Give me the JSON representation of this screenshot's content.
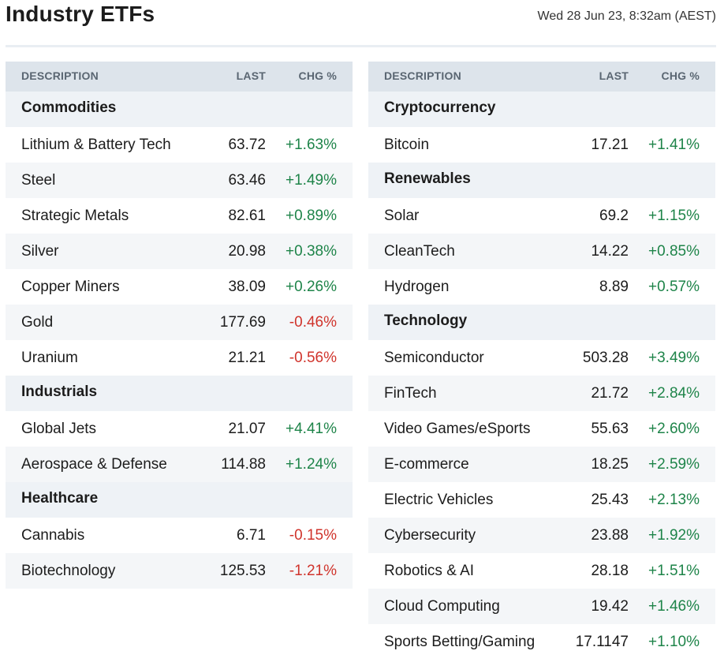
{
  "page": {
    "title": "Industry ETFs",
    "timestamp": "Wed 28 Jun 23, 8:32am (AEST)"
  },
  "columns": {
    "description": "DESCRIPTION",
    "last": "LAST",
    "chg": "CHG %"
  },
  "colors": {
    "positive": "#1e8449",
    "negative": "#d0342c",
    "header_bg": "#dde4eb",
    "group_bg": "#eef2f6"
  },
  "left_table": [
    {
      "group": "Commodities",
      "rows": [
        {
          "name": "Lithium & Battery Tech",
          "last": "63.72",
          "chg": "+1.63%"
        },
        {
          "name": "Steel",
          "last": "63.46",
          "chg": "+1.49%"
        },
        {
          "name": "Strategic Metals",
          "last": "82.61",
          "chg": "+0.89%"
        },
        {
          "name": "Silver",
          "last": "20.98",
          "chg": "+0.38%"
        },
        {
          "name": "Copper Miners",
          "last": "38.09",
          "chg": "+0.26%"
        },
        {
          "name": "Gold",
          "last": "177.69",
          "chg": "-0.46%"
        },
        {
          "name": "Uranium",
          "last": "21.21",
          "chg": "-0.56%"
        }
      ]
    },
    {
      "group": "Industrials",
      "rows": [
        {
          "name": "Global Jets",
          "last": "21.07",
          "chg": "+4.41%"
        },
        {
          "name": "Aerospace & Defense",
          "last": "114.88",
          "chg": "+1.24%"
        }
      ]
    },
    {
      "group": "Healthcare",
      "rows": [
        {
          "name": "Cannabis",
          "last": "6.71",
          "chg": "-0.15%"
        },
        {
          "name": "Biotechnology",
          "last": "125.53",
          "chg": "-1.21%"
        }
      ]
    }
  ],
  "right_table": [
    {
      "group": "Cryptocurrency",
      "rows": [
        {
          "name": "Bitcoin",
          "last": "17.21",
          "chg": "+1.41%"
        }
      ]
    },
    {
      "group": "Renewables",
      "rows": [
        {
          "name": "Solar",
          "last": "69.2",
          "chg": "+1.15%"
        },
        {
          "name": "CleanTech",
          "last": "14.22",
          "chg": "+0.85%"
        },
        {
          "name": "Hydrogen",
          "last": "8.89",
          "chg": "+0.57%"
        }
      ]
    },
    {
      "group": "Technology",
      "rows": [
        {
          "name": "Semiconductor",
          "last": "503.28",
          "chg": "+3.49%"
        },
        {
          "name": "FinTech",
          "last": "21.72",
          "chg": "+2.84%"
        },
        {
          "name": "Video Games/eSports",
          "last": "55.63",
          "chg": "+2.60%"
        },
        {
          "name": "E-commerce",
          "last": "18.25",
          "chg": "+2.59%"
        },
        {
          "name": "Electric Vehicles",
          "last": "25.43",
          "chg": "+2.13%"
        },
        {
          "name": "Cybersecurity",
          "last": "23.88",
          "chg": "+1.92%"
        },
        {
          "name": "Robotics & AI",
          "last": "28.18",
          "chg": "+1.51%"
        },
        {
          "name": "Cloud Computing",
          "last": "19.42",
          "chg": "+1.46%"
        },
        {
          "name": "Sports Betting/Gaming",
          "last": "17.1147",
          "chg": "+1.10%"
        }
      ]
    }
  ]
}
